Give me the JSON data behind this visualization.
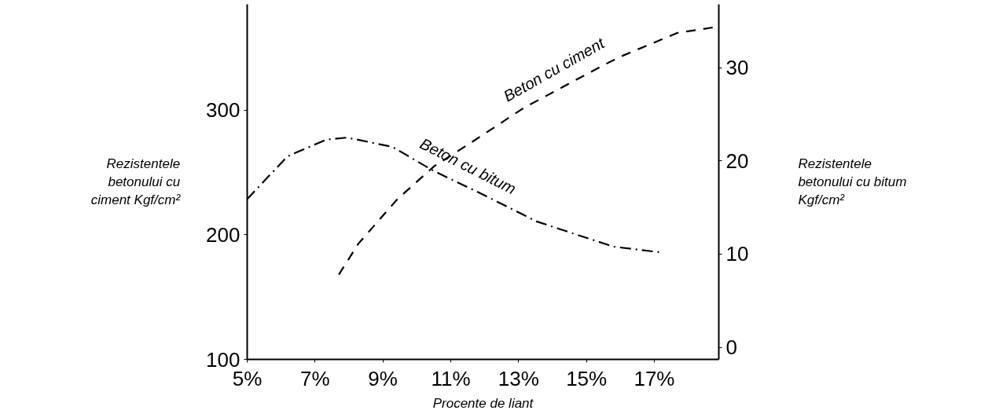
{
  "chart_data": {
    "type": "line",
    "xlabel": "Procente de liant",
    "ylabel": "Rezistentele\nbetonului cu\nciment Kgf/cm²",
    "y2label": "Rezistentele\nbetonului cu bitum\nKgf/cm²",
    "xlim": [
      5,
      18.9
    ],
    "xticks": [
      {
        "value": 5,
        "label": "5%"
      },
      {
        "value": 7,
        "label": "7%"
      },
      {
        "value": 9,
        "label": "9%"
      },
      {
        "value": 11,
        "label": "11%"
      },
      {
        "value": 13,
        "label": "13%"
      },
      {
        "value": 15,
        "label": "15%"
      },
      {
        "value": 17,
        "label": "17%"
      }
    ],
    "ylim": [
      100,
      385
    ],
    "yticks": [
      100,
      200,
      300
    ],
    "y2lim": [
      -1.3,
      36.8
    ],
    "y2ticks": [
      0,
      10,
      20,
      30
    ],
    "grid": false,
    "legend": false,
    "marker": "none",
    "series": [
      {
        "name": "Beton cu ciment",
        "color": "#000000",
        "line_style": "dashed",
        "x": [
          7.7,
          8.28,
          9.44,
          10.51,
          11.6,
          13.16,
          15.49,
          16.0,
          17.67,
          18.86
        ],
        "values": [
          168,
          193,
          229,
          255,
          274,
          302,
          336,
          343,
          362,
          367
        ]
      },
      {
        "name": "Beton cu bitum",
        "color": "#000000",
        "line_style": "dashdot",
        "axis": "y2",
        "x": [
          5.0,
          6.19,
          7.35,
          7.95,
          9.28,
          10.51,
          12.0,
          13.53,
          15.79,
          17.16
        ],
        "values": [
          15.9,
          20.5,
          22.3,
          22.5,
          21.5,
          18.9,
          16.3,
          13.5,
          10.8,
          10.2
        ]
      }
    ]
  }
}
